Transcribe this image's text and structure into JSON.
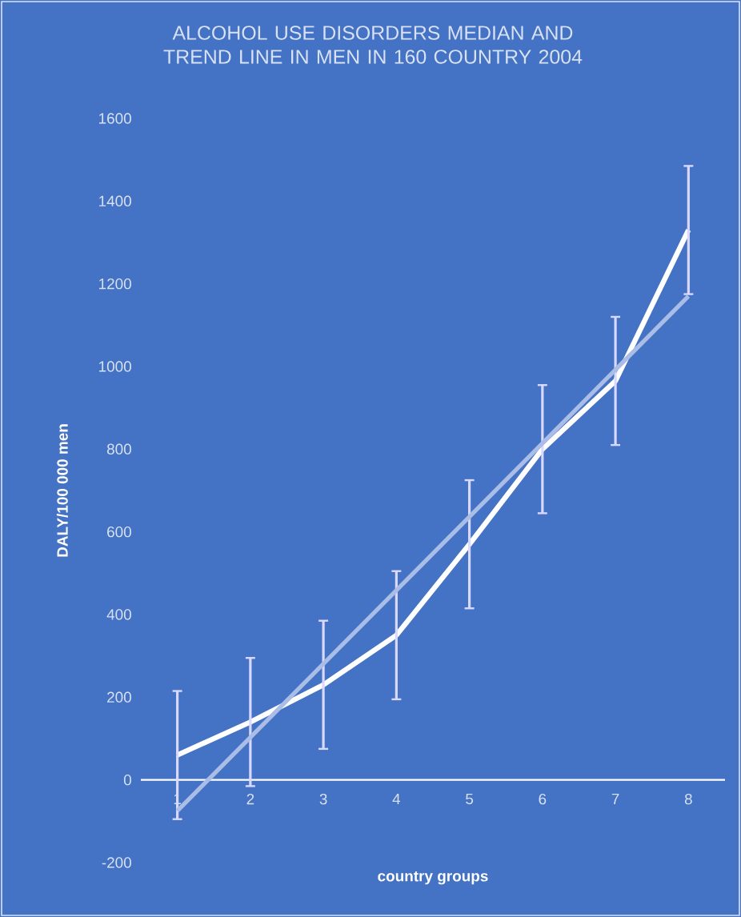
{
  "chart_data": {
    "type": "line",
    "title": "ALCOHOL USE DISORDERS MEDIAN AND TREND LINE IN MEN IN 160 COUNTRY  2004",
    "xlabel": "country groups",
    "ylabel": "DALY/100 000 men",
    "x": [
      1,
      2,
      3,
      4,
      5,
      6,
      7,
      8
    ],
    "series": [
      {
        "color": "#ffffff",
        "values": [
          60,
          140,
          230,
          350,
          570,
          800,
          965,
          1330
        ],
        "errors": [
          155,
          155,
          155,
          155,
          155,
          155,
          155,
          155
        ]
      },
      {
        "color": "#a9bde6",
        "x": [
          1,
          8
        ],
        "values": [
          -75,
          1170
        ]
      }
    ],
    "xlim": [
      0.5,
      8.5
    ],
    "xticks": [
      1,
      2,
      3,
      4,
      5,
      6,
      7,
      8
    ],
    "ylim": [
      -200,
      1600
    ],
    "yticks": [
      -200,
      0,
      200,
      400,
      600,
      800,
      1000,
      1200,
      1400,
      1600
    ],
    "grid": false,
    "marker": "none",
    "line_style": "solid"
  }
}
